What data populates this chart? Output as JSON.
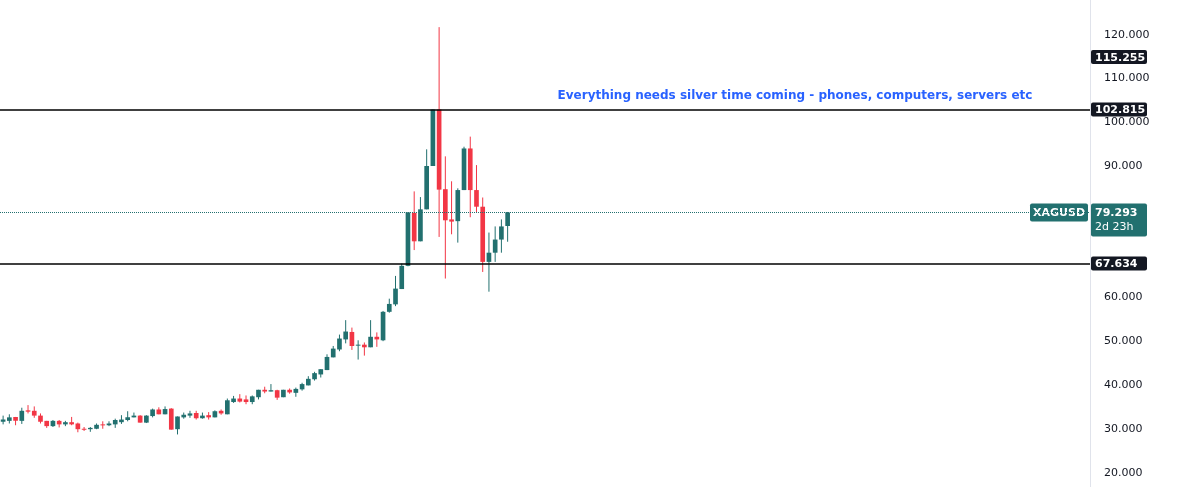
{
  "chart_data": {
    "type": "candlestick",
    "categories": [
      null,
      null,
      null,
      null,
      null,
      null,
      null,
      null,
      null,
      null,
      null,
      null,
      null,
      null,
      null,
      null,
      null,
      null,
      null,
      null,
      null,
      null,
      null,
      null,
      null,
      null,
      null,
      null,
      null,
      null,
      null,
      null,
      null,
      null,
      null,
      null,
      null,
      null,
      null,
      null,
      null,
      null,
      null,
      null,
      null,
      null,
      null,
      null,
      null,
      null,
      null,
      null,
      null,
      null,
      null,
      null,
      null,
      null,
      null,
      null,
      null,
      null,
      null,
      null,
      null,
      null,
      null,
      null,
      null,
      null,
      null,
      null,
      null,
      null,
      null,
      null,
      null,
      null,
      null,
      null,
      null,
      null,
      null,
      null,
      null,
      null,
      null,
      null,
      null,
      null,
      null,
      null,
      null,
      null,
      null,
      null,
      null,
      null,
      null,
      null,
      null,
      null,
      null,
      null,
      null,
      null,
      null,
      null,
      null,
      null,
      null,
      null,
      null,
      null,
      null,
      null,
      null,
      null,
      null,
      null,
      null,
      null,
      null,
      null,
      null,
      null,
      null,
      null,
      null,
      null,
      null,
      null,
      null,
      null,
      null,
      null,
      null,
      null,
      null,
      null,
      null,
      null,
      null,
      null,
      null,
      null,
      null,
      null,
      null,
      null,
      null,
      null,
      null,
      null,
      null,
      null,
      null,
      null,
      null,
      null,
      null,
      null,
      null,
      null,
      null,
      null,
      null,
      null,
      null,
      null,
      null,
      null,
      null,
      null,
      null
    ],
    "ohlc": [
      [
        31.5,
        32.9,
        30.9,
        32.0
      ],
      [
        31.7,
        33.2,
        31.1,
        32.5
      ],
      [
        32.6,
        32.6,
        30.7,
        31.7
      ],
      [
        31.7,
        34.7,
        31.0,
        34.0
      ],
      [
        34.1,
        35.3,
        33.4,
        33.8
      ],
      [
        34.0,
        35.0,
        32.4,
        32.9
      ],
      [
        32.9,
        33.4,
        31.1,
        31.5
      ],
      [
        31.7,
        31.7,
        30.1,
        30.5
      ],
      [
        30.5,
        31.9,
        30.3,
        31.7
      ],
      [
        31.7,
        31.9,
        30.2,
        30.9
      ],
      [
        30.9,
        31.7,
        30.5,
        31.4
      ],
      [
        31.4,
        32.6,
        30.7,
        30.9
      ],
      [
        31.1,
        31.3,
        29.1,
        29.8
      ],
      [
        29.9,
        30.3,
        29.4,
        29.7
      ],
      [
        29.8,
        30.3,
        29.2,
        30.1
      ],
      [
        29.9,
        31.1,
        29.8,
        30.8
      ],
      [
        30.9,
        31.6,
        29.9,
        30.7
      ],
      [
        30.7,
        31.6,
        30.5,
        31.1
      ],
      [
        30.9,
        32.2,
        30.1,
        31.9
      ],
      [
        31.4,
        33.0,
        31.0,
        32.0
      ],
      [
        31.9,
        33.9,
        31.6,
        32.5
      ],
      [
        32.5,
        33.6,
        32.5,
        32.9
      ],
      [
        32.9,
        33.0,
        31.3,
        31.3
      ],
      [
        31.3,
        33.0,
        31.2,
        32.9
      ],
      [
        32.8,
        34.5,
        32.5,
        34.3
      ],
      [
        34.3,
        34.8,
        33.2,
        33.2
      ],
      [
        33.2,
        35.0,
        33.2,
        34.4
      ],
      [
        34.5,
        34.6,
        29.7,
        29.7
      ],
      [
        29.8,
        32.7,
        28.6,
        32.7
      ],
      [
        32.5,
        33.6,
        32.2,
        33.1
      ],
      [
        32.9,
        34.0,
        32.4,
        33.4
      ],
      [
        33.5,
        34.0,
        32.0,
        32.3
      ],
      [
        32.3,
        33.6,
        32.2,
        32.9
      ],
      [
        33.0,
        33.7,
        32.0,
        32.5
      ],
      [
        32.5,
        34.1,
        32.5,
        33.9
      ],
      [
        34.0,
        34.3,
        33.1,
        33.4
      ],
      [
        33.2,
        36.8,
        33.2,
        36.4
      ],
      [
        36.0,
        37.4,
        35.8,
        36.8
      ],
      [
        36.8,
        37.8,
        35.9,
        36.1
      ],
      [
        36.6,
        37.5,
        35.5,
        36.0
      ],
      [
        36.0,
        37.5,
        35.5,
        37.3
      ],
      [
        37.1,
        38.8,
        36.6,
        38.8
      ],
      [
        38.8,
        39.5,
        38.0,
        38.4
      ],
      [
        38.4,
        40.1,
        38.4,
        38.7
      ],
      [
        38.7,
        38.8,
        36.5,
        37.0
      ],
      [
        37.1,
        38.8,
        37.1,
        38.8
      ],
      [
        38.8,
        39.1,
        37.9,
        38.2
      ],
      [
        38.1,
        39.3,
        37.2,
        39.0
      ],
      [
        38.9,
        40.4,
        38.6,
        40.1
      ],
      [
        39.8,
        41.9,
        39.8,
        41.3
      ],
      [
        41.2,
        42.9,
        40.9,
        42.6
      ],
      [
        42.3,
        43.5,
        41.6,
        43.5
      ],
      [
        43.3,
        46.9,
        43.3,
        46.3
      ],
      [
        46.2,
        48.8,
        46.2,
        48.2
      ],
      [
        48.0,
        51.4,
        47.6,
        50.5
      ],
      [
        50.3,
        54.7,
        49.4,
        52.1
      ],
      [
        52.0,
        53.0,
        47.9,
        48.8
      ],
      [
        48.9,
        50.1,
        45.7,
        49.1
      ],
      [
        49.1,
        49.6,
        46.6,
        48.5
      ],
      [
        48.5,
        54.7,
        48.5,
        50.9
      ],
      [
        50.9,
        51.9,
        48.6,
        50.3
      ],
      [
        50.1,
        56.8,
        49.9,
        56.6
      ],
      [
        56.6,
        59.6,
        56.4,
        58.4
      ],
      [
        58.3,
        64.8,
        57.9,
        61.9
      ],
      [
        61.8,
        67.6,
        61.8,
        67.1
      ],
      [
        67.1,
        79.3,
        67.0,
        79.3
      ],
      [
        79.2,
        84.1,
        70.7,
        72.7
      ],
      [
        72.7,
        82.8,
        72.7,
        80.0
      ],
      [
        80.0,
        93.7,
        80.0,
        89.9
      ],
      [
        89.9,
        102.8,
        89.9,
        102.8
      ],
      [
        102.8,
        121.6,
        73.7,
        84.5
      ],
      [
        84.6,
        92.1,
        64.2,
        77.5
      ],
      [
        77.7,
        86.4,
        74.3,
        77.2
      ],
      [
        77.3,
        84.8,
        72.4,
        84.4
      ],
      [
        84.4,
        94.3,
        84.4,
        93.9
      ],
      [
        93.9,
        96.6,
        78.2,
        84.4
      ],
      [
        84.4,
        90.1,
        79.4,
        80.6
      ],
      [
        80.6,
        82.7,
        65.7,
        68.0
      ],
      [
        68.0,
        74.7,
        61.2,
        70.1
      ],
      [
        70.1,
        76.1,
        68.0,
        73.1
      ],
      [
        73.1,
        77.7,
        70.1,
        76.1
      ],
      [
        76.2,
        79.4,
        72.6,
        79.3
      ],
      null,
      null,
      null,
      null,
      null,
      null,
      null,
      null,
      null,
      null,
      null,
      null,
      null,
      null,
      null,
      null,
      null,
      null,
      null,
      null,
      null,
      null,
      null,
      null,
      null,
      null,
      null,
      null,
      null,
      null,
      null,
      null,
      null,
      null,
      null,
      null,
      null,
      null,
      null,
      null,
      null,
      null,
      null,
      null,
      null,
      null,
      null,
      null,
      null,
      null,
      null,
      null,
      null,
      null,
      null,
      null,
      null,
      null,
      null,
      null,
      null,
      null,
      null,
      null,
      null,
      null,
      null,
      null,
      null,
      null,
      null,
      null,
      null,
      null,
      null,
      null,
      null,
      null,
      null,
      null,
      null,
      null,
      null,
      null,
      null,
      null,
      null,
      null,
      null,
      null,
      null,
      null,
      null
    ],
    "ylim": [
      16.6,
      127.8
    ],
    "yticks": [
      {
        "value": 20,
        "label": "20.000"
      },
      {
        "value": 30,
        "label": "30.000"
      },
      {
        "value": 40,
        "label": "40.000"
      },
      {
        "value": 50,
        "label": "50.000"
      },
      {
        "value": 60,
        "label": "60.000"
      },
      {
        "value": 90,
        "label": "90.000"
      },
      {
        "value": 100,
        "label": "100.000"
      },
      {
        "value": 110,
        "label": "110.000"
      },
      {
        "value": 120,
        "label": "120.000"
      }
    ],
    "tick_labels": "y",
    "ref_lines": [
      {
        "axis": "y",
        "value": 102.815,
        "label": "102.815",
        "color": "#000000",
        "line_style": "solid"
      },
      {
        "axis": "y",
        "value": 67.634,
        "label": "67.634",
        "color": "#000000",
        "line_style": "solid"
      },
      {
        "axis": "y",
        "value": 79.293,
        "label": "XAGUSD",
        "color": "#22706f",
        "line_style": "dotted"
      }
    ],
    "annotations": [
      "Everything needs silver time coming - phones, computers, servers etc",
      "115.255",
      "79.293",
      "2d 23h"
    ]
  }
}
